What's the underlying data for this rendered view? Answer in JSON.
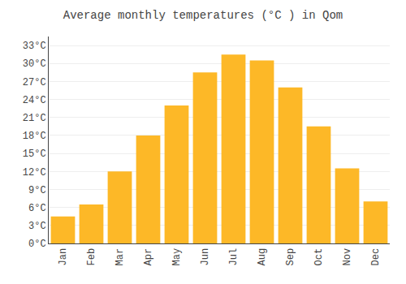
{
  "chart_data": {
    "type": "bar",
    "title": "Average monthly temperatures (°C ) in Qom",
    "categories": [
      "Jan",
      "Feb",
      "Mar",
      "Apr",
      "May",
      "Jun",
      "Jul",
      "Aug",
      "Sep",
      "Oct",
      "Nov",
      "Dec"
    ],
    "values": [
      4.5,
      6.5,
      12,
      18,
      23,
      28.5,
      31.5,
      30.5,
      26,
      19.5,
      12.5,
      7
    ],
    "color": "#FDB827",
    "ylim": [
      0,
      34.5
    ],
    "yticks": [
      {
        "value": 0,
        "label": "0°C"
      },
      {
        "value": 3,
        "label": "3°C"
      },
      {
        "value": 6,
        "label": "6°C"
      },
      {
        "value": 9,
        "label": "9°C"
      },
      {
        "value": 12,
        "label": "12°C"
      },
      {
        "value": 15,
        "label": "15°C"
      },
      {
        "value": 18,
        "label": "18°C"
      },
      {
        "value": 21,
        "label": "21°C"
      },
      {
        "value": 24,
        "label": "24°C"
      },
      {
        "value": 27,
        "label": "27°C"
      },
      {
        "value": 30,
        "label": "30°C"
      },
      {
        "value": 33,
        "label": "33°C"
      }
    ],
    "grid": true
  }
}
